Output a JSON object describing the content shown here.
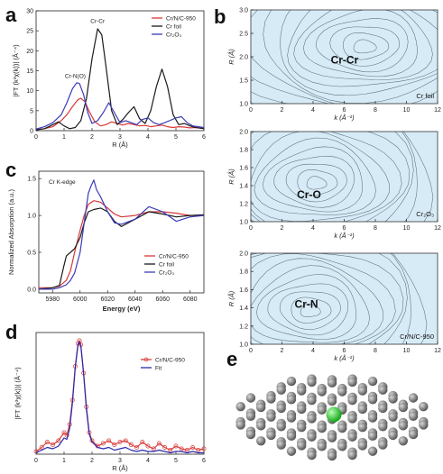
{
  "figure": {
    "panel_labels": [
      "a",
      "b",
      "c",
      "d",
      "e"
    ],
    "colors": {
      "cr_n_c": "#d93838",
      "cr_foil": "#1a1a1a",
      "cr2o3": "#3b3bb8",
      "fit": "#2a2ab0",
      "contour_bg": "#d7ebf7",
      "contour_line": "#5a6e7c"
    }
  },
  "chart_data": [
    {
      "id": "a",
      "type": "line",
      "xlabel": "R (Å)",
      "ylabel": "|FT (k³χ(k))| (Å⁻⁴)",
      "xlim": [
        0,
        6
      ],
      "ylim": [
        0,
        30
      ],
      "xticks": [
        "0",
        "1",
        "2",
        "3",
        "4",
        "5",
        "6"
      ],
      "yticks": [
        "0",
        "5",
        "10",
        "15",
        "20",
        "25",
        "30"
      ],
      "legend_position": "top-right",
      "legend": [
        "Cr/N/C-950",
        "Cr foil",
        "Cr₂O₃"
      ],
      "annotations": [
        {
          "text": "Cr-Cr",
          "x": 2.2,
          "y": 27
        },
        {
          "text": "Cr-N(O)",
          "x": 1.4,
          "y": 13.2
        }
      ],
      "series": [
        {
          "name": "Cr/N/C-950",
          "color": "#d93838",
          "x": [
            0,
            0.3,
            0.6,
            0.9,
            1.1,
            1.3,
            1.5,
            1.6,
            1.75,
            1.9,
            2.1,
            2.3,
            2.5,
            2.7,
            2.9,
            3.1,
            3.3,
            3.5,
            3.7,
            3.9,
            4.1,
            4.3,
            4.5,
            4.7,
            4.9,
            5.1,
            5.3,
            5.5,
            5.7,
            6
          ],
          "y": [
            0.3,
            0.5,
            1.0,
            2.5,
            4.0,
            6.0,
            7.8,
            8.1,
            7.2,
            4.8,
            2.2,
            1.2,
            1.5,
            2.2,
            1.8,
            1.4,
            1.8,
            1.5,
            1.2,
            1.3,
            1.0,
            1.2,
            1.4,
            1.0,
            0.8,
            1.0,
            0.9,
            0.7,
            0.8,
            0.6
          ]
        },
        {
          "name": "Cr foil",
          "color": "#1a1a1a",
          "x": [
            0,
            0.3,
            0.6,
            0.8,
            1.0,
            1.2,
            1.4,
            1.6,
            1.8,
            2.0,
            2.2,
            2.35,
            2.5,
            2.7,
            2.9,
            3.1,
            3.3,
            3.5,
            3.7,
            3.9,
            4.1,
            4.3,
            4.5,
            4.7,
            4.9,
            5.1,
            5.3,
            5.5,
            5.7,
            6
          ],
          "y": [
            0.2,
            0.5,
            1.5,
            2.2,
            1.2,
            0.5,
            0.8,
            2.5,
            8.0,
            18.0,
            25.5,
            24.0,
            16.0,
            5.0,
            1.5,
            2.8,
            4.5,
            6.0,
            3.0,
            1.8,
            5.0,
            11.0,
            15.4,
            11.0,
            4.0,
            1.5,
            1.8,
            1.2,
            0.8,
            0.5
          ]
        },
        {
          "name": "Cr₂O₃",
          "color": "#3b3bb8",
          "x": [
            0,
            0.3,
            0.6,
            0.9,
            1.1,
            1.3,
            1.45,
            1.55,
            1.7,
            1.85,
            2.0,
            2.2,
            2.4,
            2.6,
            2.8,
            3.0,
            3.2,
            3.4,
            3.6,
            3.8,
            4.0,
            4.2,
            4.4,
            4.6,
            4.8,
            5.0,
            5.2,
            5.4,
            5.6,
            6
          ],
          "y": [
            0.4,
            1.0,
            2.0,
            4.0,
            7.0,
            10.5,
            12.0,
            11.8,
            9.0,
            4.5,
            1.8,
            2.5,
            4.5,
            7.0,
            4.5,
            2.0,
            2.5,
            2.0,
            1.5,
            2.8,
            3.2,
            2.0,
            1.5,
            2.0,
            2.6,
            3.2,
            3.5,
            2.0,
            1.2,
            0.8
          ]
        }
      ]
    },
    {
      "id": "c",
      "type": "line",
      "xlabel": "Energy (eV)",
      "ylabel": "Normalized Absorption (a.u.)",
      "inset_title": "Cr K-edge",
      "xlim": [
        5970,
        6090
      ],
      "ylim": [
        -0.05,
        1.6
      ],
      "xticks": [
        "5980",
        "6000",
        "6020",
        "6040",
        "6060",
        "6080"
      ],
      "yticks": [
        "0.0",
        "0.5",
        "1.0",
        "1.5"
      ],
      "legend_position": "bottom-right",
      "legend": [
        "Cr/N/C-950",
        "Cr foil",
        "Cr₂O₃"
      ],
      "series": [
        {
          "name": "Cr/N/C-950",
          "color": "#d93838",
          "x": [
            5970,
            5980,
            5985,
            5990,
            5993,
            5996,
            6000,
            6003,
            6006,
            6010,
            6015,
            6020,
            6025,
            6030,
            6040,
            6050,
            6060,
            6070,
            6080,
            6090
          ],
          "y": [
            0.02,
            0.02,
            0.04,
            0.12,
            0.25,
            0.5,
            0.8,
            1.0,
            1.15,
            1.2,
            1.18,
            1.1,
            1.02,
            0.98,
            1.0,
            1.05,
            1.05,
            1.03,
            1.0,
            1.0
          ]
        },
        {
          "name": "Cr foil",
          "color": "#1a1a1a",
          "x": [
            5970,
            5980,
            5985,
            5988,
            5990,
            5993,
            5996,
            6000,
            6003,
            6006,
            6010,
            6015,
            6020,
            6025,
            6030,
            6040,
            6050,
            6060,
            6070,
            6080,
            6090
          ],
          "y": [
            0.0,
            0.02,
            0.05,
            0.3,
            0.45,
            0.5,
            0.55,
            0.7,
            0.9,
            1.05,
            1.08,
            1.1,
            1.05,
            0.92,
            0.85,
            0.95,
            1.05,
            1.02,
            0.98,
            1.0,
            1.01
          ]
        },
        {
          "name": "Cr₂O₃",
          "color": "#3b3bb8",
          "x": [
            5970,
            5980,
            5985,
            5990,
            5993,
            5996,
            6000,
            6003,
            6006,
            6008,
            6010,
            6012,
            6015,
            6020,
            6025,
            6030,
            6040,
            6050,
            6060,
            6070,
            6080,
            6090
          ],
          "y": [
            0.0,
            0.0,
            0.02,
            0.06,
            0.12,
            0.22,
            0.5,
            0.9,
            1.3,
            1.4,
            1.48,
            1.35,
            1.25,
            1.05,
            0.9,
            0.88,
            0.95,
            1.12,
            1.05,
            0.92,
            0.98,
            1.0
          ]
        }
      ]
    },
    {
      "id": "d",
      "type": "line",
      "xlabel": "R (Å)",
      "ylabel": "|FT (k³χ(k))| (Å⁻⁴)",
      "xlim": [
        0,
        6
      ],
      "ylim": [
        0,
        9
      ],
      "xticks": [
        "0",
        "1",
        "2",
        "3",
        "4",
        "5",
        "6"
      ],
      "legend_position": "top-right",
      "legend": [
        "Cr/N/C-950",
        "Fit"
      ],
      "series": [
        {
          "name": "Cr/N/C-950",
          "color": "#d93838",
          "marker": "circle",
          "x": [
            0,
            0.2,
            0.4,
            0.6,
            0.8,
            1.0,
            1.1,
            1.2,
            1.3,
            1.4,
            1.5,
            1.55,
            1.6,
            1.7,
            1.8,
            1.9,
            2.0,
            2.2,
            2.4,
            2.6,
            2.8,
            3.0,
            3.2,
            3.4,
            3.6,
            3.8,
            4.0,
            4.2,
            4.4,
            4.6,
            4.8,
            5.0,
            5.2,
            5.4,
            5.6,
            5.8,
            6.0
          ],
          "y": [
            0.2,
            0.5,
            0.9,
            0.7,
            1.0,
            1.6,
            1.4,
            2.2,
            4.0,
            6.5,
            8.2,
            8.4,
            8.1,
            6.0,
            3.5,
            1.6,
            1.0,
            0.6,
            0.8,
            1.0,
            0.7,
            0.9,
            1.0,
            0.7,
            0.5,
            0.9,
            0.6,
            0.4,
            0.8,
            0.5,
            0.3,
            0.6,
            0.4,
            0.3,
            0.5,
            0.3,
            0.4
          ]
        },
        {
          "name": "Fit",
          "color": "#2a2ab0",
          "x": [
            0,
            0.2,
            0.4,
            0.6,
            0.8,
            1.0,
            1.1,
            1.2,
            1.3,
            1.4,
            1.5,
            1.55,
            1.6,
            1.7,
            1.8,
            1.9,
            2.0,
            2.2,
            2.4,
            2.6,
            2.8,
            3.0,
            3.2,
            3.4,
            3.6,
            3.8,
            4.0,
            4.2,
            4.4,
            4.6,
            4.8,
            5.0,
            5.2,
            5.4,
            5.6,
            5.8,
            6.0
          ],
          "y": [
            0.1,
            0.3,
            0.5,
            0.4,
            0.6,
            1.2,
            1.1,
            1.9,
            3.8,
            6.4,
            8.1,
            8.3,
            8.0,
            5.9,
            3.3,
            1.5,
            0.9,
            0.5,
            0.4,
            0.5,
            0.3,
            0.4,
            0.5,
            0.3,
            0.2,
            0.3,
            0.2,
            0.2,
            0.3,
            0.2,
            0.1,
            0.2,
            0.2,
            0.1,
            0.2,
            0.1,
            0.1
          ]
        }
      ]
    },
    {
      "id": "b",
      "type": "heatmap",
      "xlabel": "k (Å⁻¹)",
      "ylabel": "R (Å)",
      "xticks": [
        "0",
        "2",
        "4",
        "6",
        "8",
        "10",
        "12"
      ],
      "subplots": [
        {
          "label": "Cr-Cr",
          "corner": "Cr foil",
          "xlim": [
            0,
            12
          ],
          "ylim": [
            1.0,
            3.0
          ],
          "yticks": [
            "1.0",
            "1.5",
            "2.0",
            "2.5",
            "3.0"
          ],
          "peak": {
            "k": 7.3,
            "R": 2.2
          }
        },
        {
          "label": "Cr-O",
          "corner": "Cr₂O₃",
          "xlim": [
            0,
            12
          ],
          "ylim": [
            1.0,
            2.0
          ],
          "yticks": [
            "1.0",
            "1.2",
            "1.4",
            "1.6",
            "1.8",
            "2.0"
          ],
          "peak": {
            "k": 4.2,
            "R": 1.42
          }
        },
        {
          "label": "Cr-N",
          "corner": "Cr/N/C-950",
          "xlim": [
            0,
            12
          ],
          "ylim": [
            1.0,
            2.0
          ],
          "yticks": [
            "1.0",
            "1.2",
            "1.4",
            "1.6",
            "1.8",
            "2.0"
          ],
          "peak": {
            "k": 3.8,
            "R": 1.36
          }
        }
      ]
    }
  ]
}
